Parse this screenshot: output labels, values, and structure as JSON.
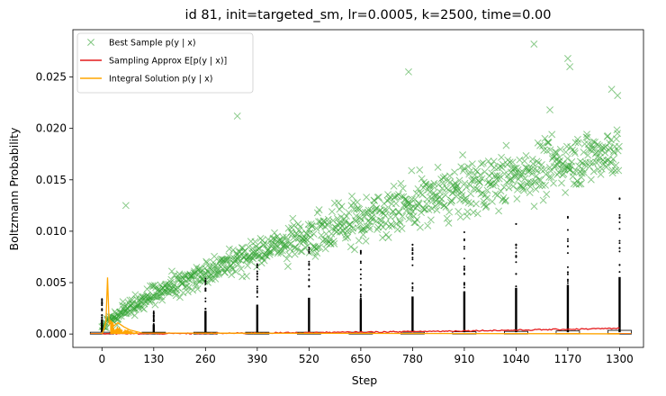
{
  "chart_data": {
    "type": "scatter",
    "title": "id 81, init=targeted_sm, lr=0.0005, k=2500, time=0.00",
    "xlabel": "Step",
    "ylabel": "Boltzmann Probability",
    "xlim": [
      -73,
      1360
    ],
    "ylim": [
      -0.0013,
      0.0296
    ],
    "x_ticks": [
      0,
      130,
      260,
      390,
      520,
      650,
      780,
      910,
      1040,
      1170,
      1300
    ],
    "y_ticks": [
      0.0,
      0.005,
      0.01,
      0.015,
      0.02,
      0.025
    ],
    "y_tick_labels": [
      "0.000",
      "0.005",
      "0.010",
      "0.015",
      "0.020",
      "0.025"
    ],
    "legend": {
      "position": "upper-left",
      "entries": [
        {
          "label": "Best Sample p(y | x)",
          "marker": "x",
          "color": "#2ca02c"
        },
        {
          "label": "Sampling Approx E[p(y | x)]",
          "marker": "line",
          "color": "#e41a1c"
        },
        {
          "label": "Integral Solution p(y | x)",
          "marker": "line",
          "color": "#ffa500"
        }
      ]
    },
    "series": [
      {
        "name": "Best Sample p(y | x)",
        "color": "#2ca02c",
        "trend_start": 0.0005,
        "trend_end": 0.018,
        "spread": 0.0035,
        "notable_points": [
          {
            "x": 60,
            "y": 0.0125
          },
          {
            "x": 340,
            "y": 0.0212
          },
          {
            "x": 770,
            "y": 0.0255
          },
          {
            "x": 1085,
            "y": 0.0282
          },
          {
            "x": 1125,
            "y": 0.0218
          },
          {
            "x": 1170,
            "y": 0.0268
          },
          {
            "x": 1175,
            "y": 0.026
          },
          {
            "x": 1280,
            "y": 0.0238
          },
          {
            "x": 1295,
            "y": 0.0232
          }
        ]
      },
      {
        "name": "Sampling Approx E[p(y | x)]",
        "color": "#e41a1c",
        "x": [
          0,
          130,
          260,
          390,
          520,
          650,
          780,
          910,
          1040,
          1170,
          1300
        ],
        "y": [
          3e-05,
          4e-05,
          6e-05,
          0.0001,
          0.00014,
          0.00018,
          0.00024,
          0.00031,
          0.00038,
          0.00046,
          0.00055
        ]
      },
      {
        "name": "Integral Solution p(y | x)",
        "color": "#ffa500",
        "x": [
          0,
          6,
          10,
          14,
          18,
          22,
          30,
          40,
          55,
          70,
          100,
          1300
        ],
        "y": [
          0.0,
          0.0006,
          0.0012,
          0.0055,
          0.001,
          0.0013,
          0.0008,
          0.0011,
          0.0007,
          0.0004,
          0.0001,
          2e-05
        ]
      }
    ],
    "boxplots": {
      "positions": [
        0,
        130,
        260,
        390,
        520,
        650,
        780,
        910,
        1040,
        1170,
        1300
      ],
      "upper_outlier": [
        0.0034,
        0.0022,
        0.0054,
        0.0068,
        0.0084,
        0.0081,
        0.0087,
        0.0099,
        0.0107,
        0.0114,
        0.0132
      ],
      "box_top": [
        5e-05,
        8e-05,
        0.0001,
        0.00012,
        0.00014,
        0.00015,
        0.00018,
        0.00022,
        0.00026,
        0.0003,
        0.00036
      ]
    }
  }
}
